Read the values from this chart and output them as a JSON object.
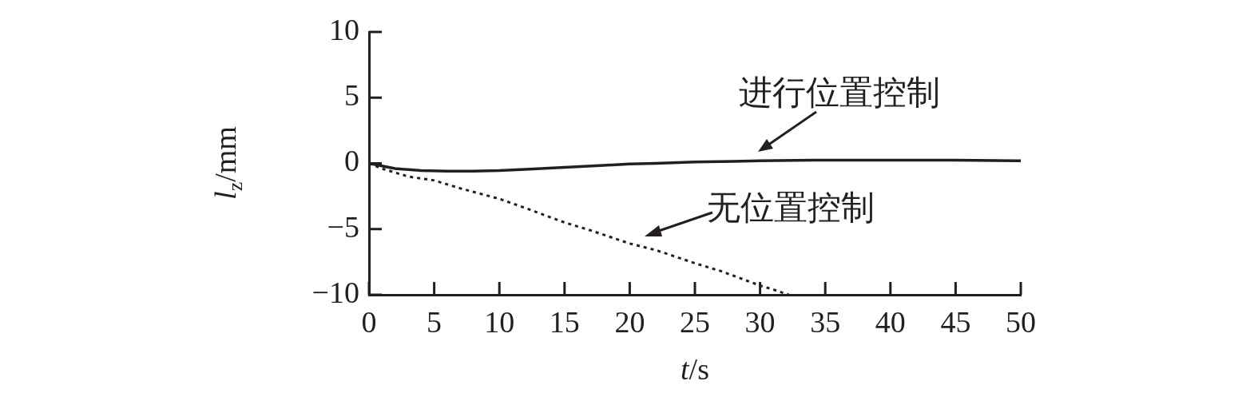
{
  "chart_data": {
    "type": "line",
    "xlabel": "t/s",
    "ylabel": "l$_{z}$/mm",
    "xlim": [
      0,
      50
    ],
    "xticks": [
      0,
      5,
      10,
      15,
      20,
      25,
      30,
      35,
      40,
      45,
      50
    ],
    "ylim": [
      -10,
      10
    ],
    "yticks": [
      {
        "value": -10,
        "label": "−10"
      },
      {
        "value": -5,
        "label": "−5"
      },
      0,
      5,
      10
    ],
    "grid": false,
    "legend": false,
    "marker": "none",
    "series": [
      {
        "color": "#231f20",
        "line_style": "solid",
        "x": [
          0,
          1,
          2,
          4,
          6,
          8,
          10,
          12,
          15,
          18,
          20,
          22,
          25,
          28,
          30,
          35,
          40,
          45,
          50
        ],
        "values": [
          0,
          -0.2,
          -0.4,
          -0.55,
          -0.6,
          -0.6,
          -0.55,
          -0.45,
          -0.3,
          -0.15,
          -0.05,
          0,
          0.1,
          0.15,
          0.2,
          0.25,
          0.25,
          0.25,
          0.2
        ]
      },
      {
        "color": "#231f20",
        "line_style": "dotted",
        "x": [
          0,
          1,
          2,
          3,
          5,
          7,
          10,
          12,
          15,
          17,
          20,
          22,
          25,
          27,
          30,
          31,
          32.2
        ],
        "values": [
          0,
          -0.4,
          -0.7,
          -1,
          -1.3,
          -1.9,
          -2.7,
          -3.4,
          -4.5,
          -5.1,
          -6.1,
          -6.6,
          -7.6,
          -8.2,
          -9.3,
          -9.6,
          -10
        ]
      }
    ],
    "annotations": [
      "进行位置控制",
      "无位置控制"
    ]
  }
}
